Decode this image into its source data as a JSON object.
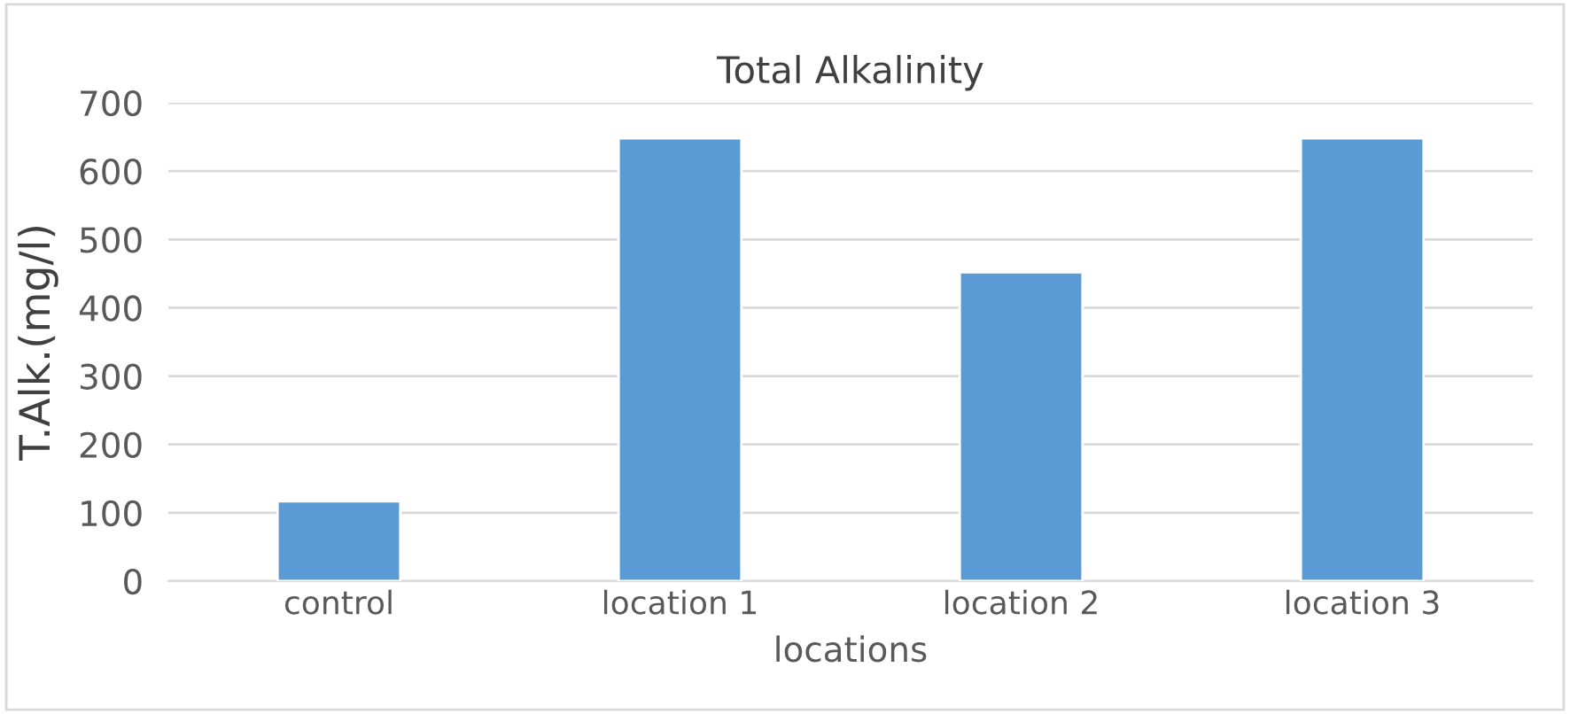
{
  "chart_data": {
    "type": "bar",
    "title": "Total Alkalinity",
    "xlabel": "locations",
    "ylabel": "T.Alk.(mg/l)",
    "categories": [
      "control",
      "location 1",
      "location 2",
      "location 3"
    ],
    "values": [
      117,
      648,
      452,
      648
    ],
    "color": "#5b9bd5",
    "ylim": [
      0,
      700
    ],
    "yticks": [
      0,
      100,
      200,
      300,
      400,
      500,
      600,
      700
    ],
    "grid": "y",
    "legend": false
  }
}
